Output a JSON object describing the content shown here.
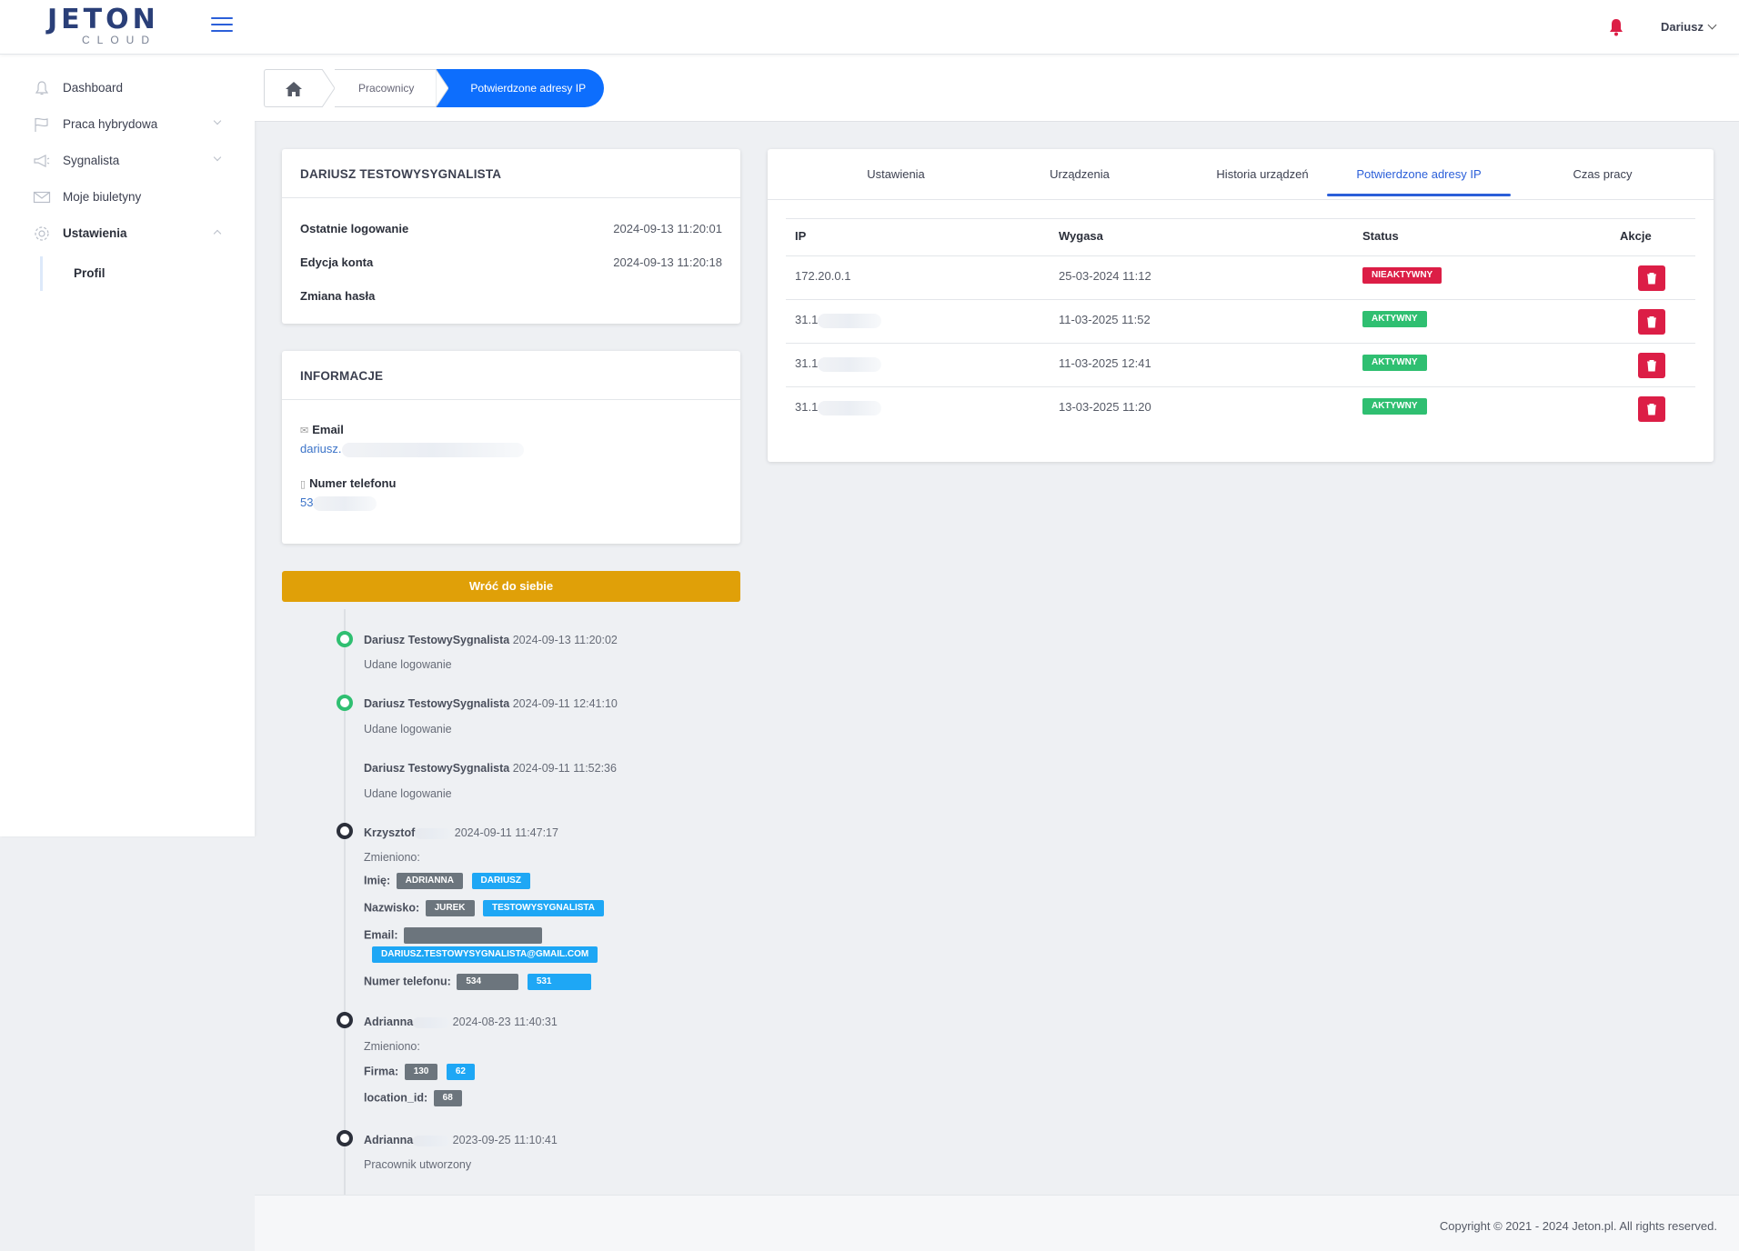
{
  "brand": {
    "name": "JETON",
    "sub": "CLOUD"
  },
  "header": {
    "user_name": "Dariusz"
  },
  "sidebar": {
    "items": [
      {
        "label": "Dashboard"
      },
      {
        "label": "Praca hybrydowa"
      },
      {
        "label": "Sygnalista"
      },
      {
        "label": "Moje biuletyny"
      },
      {
        "label": "Ustawienia"
      }
    ],
    "sub_item": "Profil"
  },
  "breadcrumb": {
    "items": [
      "Pracownicy"
    ],
    "active": "Potwierdzone adresy IP"
  },
  "profile_card": {
    "title": "DARIUSZ TESTOWYSYGNALISTA",
    "rows": [
      {
        "label": "Ostatnie logowanie",
        "value": "2024-09-13 11:20:01"
      },
      {
        "label": "Edycja konta",
        "value": "2024-09-13 11:20:18"
      },
      {
        "label": "Zmiana hasła",
        "value": ""
      }
    ]
  },
  "info_card": {
    "title": "INFORMACJE",
    "email_label": "Email",
    "email_value": "dariusz.",
    "phone_label": "Numer telefonu",
    "phone_value": "53"
  },
  "back_button": "Wróć do siebie",
  "timeline": [
    {
      "user": "Dariusz TestowySygnalista",
      "time": "2024-09-13 11:20:02",
      "desc": "Udane logowanie"
    },
    {
      "user": "Dariusz TestowySygnalista",
      "time": "2024-09-11 12:41:10",
      "desc": "Udane logowanie"
    },
    {
      "user": "Dariusz TestowySygnalista",
      "time": "2024-09-11 11:52:36",
      "desc": "Udane logowanie"
    },
    {
      "user": "Krzysztof",
      "time": "2024-09-11 11:47:17",
      "desc": "Zmieniono:",
      "changes": [
        {
          "field": "Imię:",
          "old": "ADRIANNA",
          "new": "DARIUSZ"
        },
        {
          "field": "Nazwisko:",
          "old": "JUREK",
          "new": "TESTOWYSYGNALISTA"
        },
        {
          "field": "Email:",
          "old": "",
          "new": "DARIUSZ.TESTOWYSYGNALISTA@GMAIL.COM"
        },
        {
          "field": "Numer telefonu:",
          "old": "534",
          "new": "531"
        }
      ]
    },
    {
      "user": "Adrianna",
      "time": "2024-08-23 11:40:31",
      "desc": "Zmieniono:",
      "changes": [
        {
          "field": "Firma:",
          "old": "130",
          "new": "62"
        },
        {
          "field": "location_id:",
          "old": "68",
          "new": ""
        }
      ]
    },
    {
      "user": "Adrianna",
      "time": "2023-09-25 11:10:41",
      "desc": "Pracownik utworzony"
    }
  ],
  "tabs": [
    "Ustawienia",
    "Urządzenia",
    "Historia urządzeń",
    "Potwierdzone adresy IP",
    "Czas pracy"
  ],
  "ip_table": {
    "headers": [
      "IP",
      "Wygasa",
      "Status",
      "Akcje"
    ],
    "rows": [
      {
        "ip": "172.20.0.1",
        "expires": "25-03-2024 11:12",
        "status": "NIEAKTYWNY"
      },
      {
        "ip": "31.1",
        "expires": "11-03-2025 11:52",
        "status": "AKTYWNY"
      },
      {
        "ip": "31.1",
        "expires": "11-03-2025 12:41",
        "status": "AKTYWNY"
      },
      {
        "ip": "31.1",
        "expires": "13-03-2025 11:20",
        "status": "AKTYWNY"
      }
    ]
  },
  "footer": {
    "copyright": "Copyright © 2021 - 2024 Jeton.pl. All rights reserved."
  },
  "colors": {
    "primary": "#0d6efd",
    "warning": "#e0a008",
    "danger": "#dc1e46",
    "success": "#2fbf71"
  }
}
